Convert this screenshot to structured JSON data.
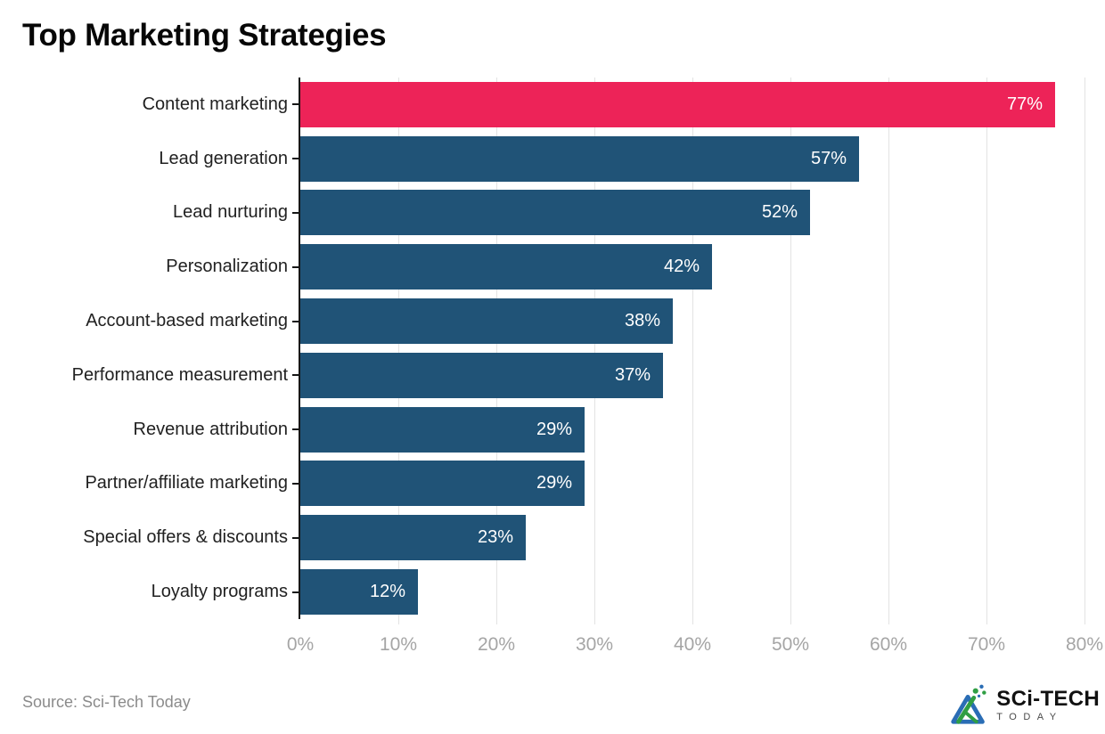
{
  "page": {
    "title": "Top Marketing Strategies",
    "source": "Source: Sci-Tech Today"
  },
  "logo": {
    "main": "SCi-TECH",
    "sub": "TODAY"
  },
  "chart_data": {
    "type": "bar",
    "orientation": "horizontal",
    "title": "Top Marketing Strategies",
    "categories": [
      "Content marketing",
      "Lead generation",
      "Lead nurturing",
      "Personalization",
      "Account-based marketing",
      "Performance measurement",
      "Revenue attribution",
      "Partner/affiliate marketing",
      "Special offers & discounts",
      "Loyalty programs"
    ],
    "values": [
      77,
      57,
      52,
      42,
      38,
      37,
      29,
      29,
      23,
      12
    ],
    "value_labels": [
      "77%",
      "57%",
      "52%",
      "42%",
      "38%",
      "37%",
      "29%",
      "29%",
      "23%",
      "12%"
    ],
    "xlim": [
      0,
      80
    ],
    "x_tick_labels": [
      "0%",
      "10%",
      "20%",
      "30%",
      "40%",
      "50%",
      "60%",
      "70%",
      "80%"
    ],
    "grid": true,
    "legend": false,
    "highlight_index": 0,
    "highlight_color": "#ED2358",
    "bar_color": "#205377",
    "value_label_color": "#ffffff",
    "grid_color": "#e3e3e3",
    "axis_tick_color": "#a5a5a5"
  }
}
